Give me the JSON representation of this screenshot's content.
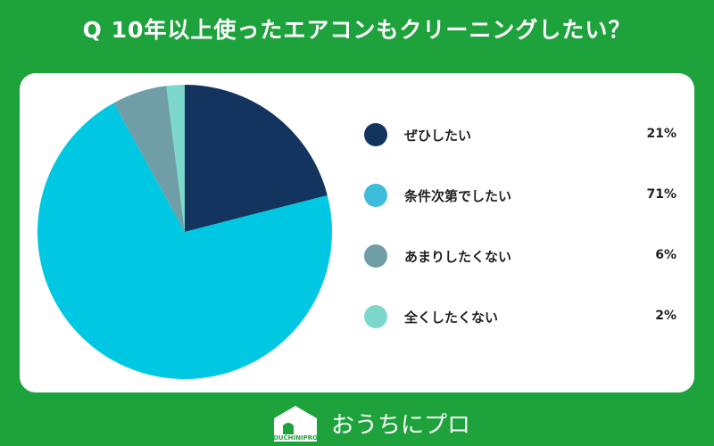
{
  "title": "Q 10年以上使ったエアコンもクリーニングしたい？",
  "colors": {
    "background": "#1ea23c"
  },
  "chart_data": {
    "type": "pie",
    "title": "Q 10年以上使ったエアコンもクリーニングしたい？",
    "categories": [
      "ぜひしたい",
      "条件次第でしたい",
      "あまりしたくない",
      "全くしたくない"
    ],
    "values": [
      21,
      71,
      6,
      2
    ],
    "labels": [
      "21%",
      "71%",
      "6%",
      "2%"
    ],
    "colors": [
      "#13345f",
      "#00c8e2",
      "#6f9ea6",
      "#7dd8cc"
    ],
    "legend_colors": [
      "#13345f",
      "#3dbcdb",
      "#6f9ea6",
      "#7dd8cc"
    ],
    "start": "top",
    "direction": "clockwise",
    "legend_placement": "right"
  },
  "footer": {
    "brand": "おうちにプロ",
    "logo_text": "OUCHINIPRO"
  }
}
